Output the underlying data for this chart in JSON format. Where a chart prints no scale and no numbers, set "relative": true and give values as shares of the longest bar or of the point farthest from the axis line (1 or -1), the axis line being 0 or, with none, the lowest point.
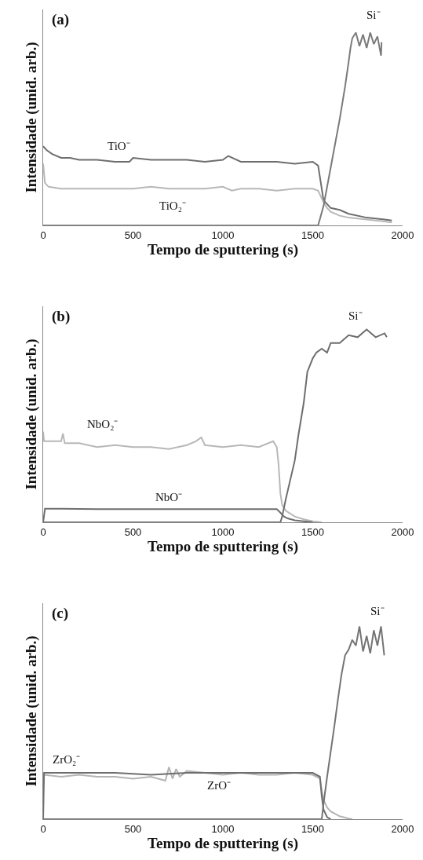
{
  "chart_data": [
    {
      "type": "line",
      "title": "(a)",
      "xlabel": "Tempo de sputtering (s)",
      "ylabel": "Intensidade (unid. arb.)",
      "relative": true,
      "xlim": [
        0,
        2000
      ],
      "xticks": [
        0,
        500,
        1000,
        1500,
        2000
      ],
      "legend": false,
      "marker": "none",
      "line_style": "solid",
      "series": [
        {
          "name": "TiO⁻",
          "color": "#6e6e6e",
          "x": [
            0,
            20,
            50,
            100,
            150,
            200,
            300,
            400,
            480,
            500,
            600,
            700,
            800,
            900,
            1000,
            1030,
            1100,
            1200,
            1300,
            1400,
            1500,
            1530,
            1545,
            1560,
            1580,
            1600,
            1650,
            1700,
            1800,
            1900,
            1940
          ],
          "values": [
            0.41,
            0.39,
            0.37,
            0.35,
            0.35,
            0.34,
            0.34,
            0.33,
            0.33,
            0.35,
            0.34,
            0.34,
            0.34,
            0.33,
            0.34,
            0.36,
            0.33,
            0.33,
            0.33,
            0.32,
            0.33,
            0.31,
            0.22,
            0.13,
            0.11,
            0.09,
            0.08,
            0.06,
            0.04,
            0.03,
            0.025
          ]
        },
        {
          "name": "TiO₂⁻",
          "color": "#b8b8b8",
          "x": [
            0,
            10,
            30,
            100,
            200,
            300,
            400,
            500,
            600,
            700,
            800,
            900,
            1000,
            1050,
            1100,
            1200,
            1300,
            1400,
            1500,
            1530,
            1545,
            1560,
            1580,
            1600,
            1650,
            1700,
            1800,
            1900,
            1940
          ],
          "values": [
            0.32,
            0.22,
            0.2,
            0.19,
            0.19,
            0.19,
            0.19,
            0.19,
            0.2,
            0.19,
            0.19,
            0.19,
            0.2,
            0.18,
            0.19,
            0.19,
            0.18,
            0.19,
            0.19,
            0.18,
            0.15,
            0.12,
            0.09,
            0.07,
            0.05,
            0.04,
            0.03,
            0.02,
            0.015
          ]
        },
        {
          "name": "Si⁻",
          "color": "#7a7a7a",
          "x": [
            0,
            1530,
            1545,
            1560,
            1580,
            1600,
            1620,
            1650,
            1680,
            1700,
            1710,
            1720,
            1740,
            1760,
            1780,
            1800,
            1820,
            1840,
            1860,
            1880,
            1883
          ],
          "values": [
            0,
            0,
            0.05,
            0.1,
            0.2,
            0.3,
            0.4,
            0.55,
            0.72,
            0.85,
            0.92,
            0.97,
            1.0,
            0.93,
            0.99,
            0.92,
            1.0,
            0.94,
            0.98,
            0.88,
            0.95
          ]
        }
      ]
    },
    {
      "type": "line",
      "title": "(b)",
      "xlabel": "Tempo de sputtering (s)",
      "ylabel": "Intensidade (unid. arb.)",
      "relative": true,
      "xlim": [
        0,
        2000
      ],
      "xticks": [
        0,
        500,
        1000,
        1500,
        2000
      ],
      "legend": false,
      "marker": "none",
      "line_style": "solid",
      "series": [
        {
          "name": "NbO₂⁻",
          "color": "#b8b8b8",
          "x": [
            0,
            5,
            20,
            100,
            110,
            120,
            200,
            300,
            400,
            500,
            600,
            700,
            800,
            850,
            880,
            900,
            1000,
            1100,
            1200,
            1280,
            1300,
            1310,
            1320,
            1330,
            1350,
            1400,
            1450,
            1500,
            1550
          ],
          "values": [
            0.47,
            0.42,
            0.42,
            0.42,
            0.46,
            0.41,
            0.41,
            0.39,
            0.4,
            0.39,
            0.39,
            0.38,
            0.4,
            0.42,
            0.44,
            0.4,
            0.39,
            0.4,
            0.39,
            0.42,
            0.39,
            0.3,
            0.15,
            0.09,
            0.06,
            0.03,
            0.015,
            0.005,
            0
          ]
        },
        {
          "name": "NbO⁻",
          "color": "#6e6e6e",
          "x": [
            0,
            10,
            100,
            300,
            500,
            700,
            900,
            1100,
            1300,
            1320,
            1340,
            1360,
            1400,
            1450,
            1500
          ],
          "values": [
            0,
            0.07,
            0.07,
            0.068,
            0.068,
            0.068,
            0.068,
            0.068,
            0.068,
            0.05,
            0.03,
            0.02,
            0.01,
            0.005,
            0
          ]
        },
        {
          "name": "Si⁻",
          "color": "#6e6e6e",
          "x": [
            0,
            1320,
            1330,
            1350,
            1370,
            1400,
            1420,
            1450,
            1470,
            1500,
            1520,
            1550,
            1580,
            1600,
            1650,
            1700,
            1750,
            1800,
            1850,
            1900,
            1912
          ],
          "values": [
            0,
            0,
            0.03,
            0.12,
            0.2,
            0.32,
            0.45,
            0.62,
            0.78,
            0.85,
            0.88,
            0.9,
            0.88,
            0.93,
            0.93,
            0.97,
            0.96,
            1.0,
            0.96,
            0.98,
            0.96
          ]
        }
      ]
    },
    {
      "type": "line",
      "title": "(c)",
      "xlabel": "Tempo de sputtering (s)",
      "ylabel": "Intensidade (unid. arb.)",
      "relative": true,
      "xlim": [
        0,
        2000
      ],
      "xticks": [
        0,
        500,
        1000,
        1500,
        2000
      ],
      "legend": false,
      "marker": "none",
      "line_style": "solid",
      "series": [
        {
          "name": "ZrO₂⁻",
          "color": "#b4b4b4",
          "x": [
            0,
            5,
            100,
            200,
            300,
            400,
            500,
            600,
            680,
            700,
            720,
            740,
            760,
            800,
            900,
            1000,
            1100,
            1200,
            1300,
            1400,
            1500,
            1540,
            1550,
            1560,
            1580,
            1600,
            1650,
            1700,
            1720
          ],
          "values": [
            0.22,
            0.23,
            0.22,
            0.23,
            0.22,
            0.22,
            0.21,
            0.22,
            0.2,
            0.27,
            0.21,
            0.26,
            0.22,
            0.25,
            0.24,
            0.23,
            0.24,
            0.23,
            0.23,
            0.24,
            0.23,
            0.21,
            0.15,
            0.1,
            0.06,
            0.04,
            0.015,
            0.003,
            0
          ]
        },
        {
          "name": "ZrO⁻",
          "color": "#6e6e6e",
          "x": [
            0,
            5,
            200,
            400,
            600,
            800,
            1000,
            1200,
            1400,
            1500,
            1540,
            1550,
            1560,
            1580,
            1600
          ],
          "values": [
            0,
            0.24,
            0.24,
            0.24,
            0.23,
            0.24,
            0.24,
            0.24,
            0.24,
            0.24,
            0.22,
            0.12,
            0.05,
            0.01,
            0
          ]
        },
        {
          "name": "Si⁻",
          "color": "#747474",
          "x": [
            0,
            1550,
            1560,
            1580,
            1600,
            1620,
            1640,
            1660,
            1680,
            1700,
            1720,
            1740,
            1760,
            1780,
            1800,
            1820,
            1840,
            1860,
            1880,
            1898
          ],
          "values": [
            0,
            0,
            0.08,
            0.22,
            0.35,
            0.48,
            0.62,
            0.75,
            0.85,
            0.88,
            0.93,
            0.9,
            1.0,
            0.87,
            0.95,
            0.86,
            0.98,
            0.9,
            1.0,
            0.85
          ]
        }
      ]
    }
  ]
}
